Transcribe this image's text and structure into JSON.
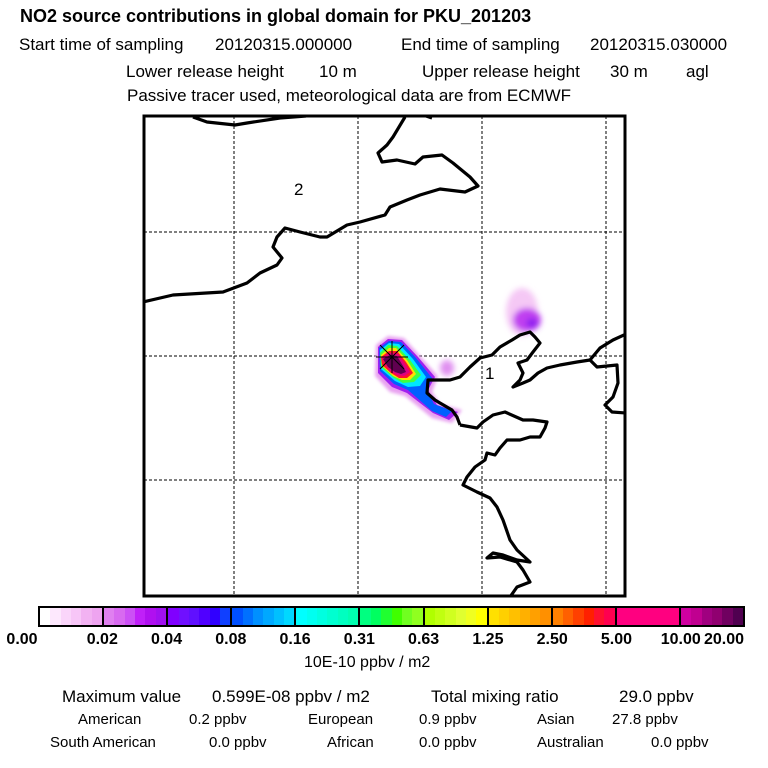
{
  "header": {
    "title": "NO2 source contributions in global domain for PKU_201203",
    "start_label": "Start time of sampling",
    "start_value": "20120315.000000",
    "end_label": "End time of sampling",
    "end_value": "20120315.030000",
    "lower_label": "Lower release height",
    "lower_value": "10 m",
    "upper_label": "Upper release height",
    "upper_value": "30 m",
    "height_ref": "agl",
    "note": "Passive tracer used, meteorological data are from ECMWF"
  },
  "map": {
    "region_labels": [
      "2",
      "1"
    ],
    "source_marker": "asterisk-source-icon"
  },
  "colorbar": {
    "ticks": [
      "0.00",
      "0.02",
      "0.04",
      "0.08",
      "0.16",
      "0.31",
      "0.63",
      "1.25",
      "2.50",
      "5.00",
      "10.00",
      "20.00"
    ],
    "units": "10E-10 ppbv / m2",
    "bins": [
      [
        "#ffffff",
        "#fde8fd",
        "#fad5fa",
        "#f7c6f7",
        "#f2b2f2",
        "#eea4f0"
      ],
      [
        "#e080f0",
        "#d86af0",
        "#cc50f5",
        "#c020f8",
        "#b010f0",
        "#a010f0"
      ],
      [
        "#8000ff",
        "#7010ff",
        "#6010ff",
        "#5000ff",
        "#3000ff",
        "#1040ff"
      ],
      [
        "#0050ff",
        "#0070ff",
        "#0090ff",
        "#00a8ff",
        "#00c0ff",
        "#00d8ff"
      ],
      [
        "#00ffff",
        "#00fff0",
        "#00ffe0",
        "#00ffd0",
        "#00ffc0",
        "#00ffb0"
      ],
      [
        "#00ff80",
        "#00ff60",
        "#20ff30",
        "#40ff00",
        "#70ff20",
        "#90ff20"
      ],
      [
        "#b0ff00",
        "#c0ff10",
        "#d0ff20",
        "#e0ff30",
        "#f0ff20",
        "#ffff00"
      ],
      [
        "#ffe000",
        "#ffd000",
        "#ffc000",
        "#ffb000",
        "#ffa000",
        "#ff9000"
      ],
      [
        "#ff8000",
        "#ff6000",
        "#ff4000",
        "#ff2000",
        "#ff1030",
        "#ff0050"
      ],
      [
        "#ff0080",
        "#ff0080",
        "#ff0080",
        "#ff0080",
        "#ff0080",
        "#ff0080"
      ],
      [
        "#d000a0",
        "#c00090",
        "#a00080",
        "#900070",
        "#700060",
        "#500050"
      ]
    ]
  },
  "stats": {
    "max_label": "Maximum value",
    "max_value": "0.599E-08 ppbv / m2",
    "total_label": "Total mixing ratio",
    "total_value": "29.0 ppbv",
    "regions": [
      {
        "name": "American",
        "value": "0.2 ppbv"
      },
      {
        "name": "European",
        "value": "0.9 ppbv"
      },
      {
        "name": "Asian",
        "value": "27.8 ppbv"
      },
      {
        "name": "South American",
        "value": "0.0 ppbv"
      },
      {
        "name": "African",
        "value": "0.0 ppbv"
      },
      {
        "name": "Australian",
        "value": "0.0 ppbv"
      }
    ]
  }
}
